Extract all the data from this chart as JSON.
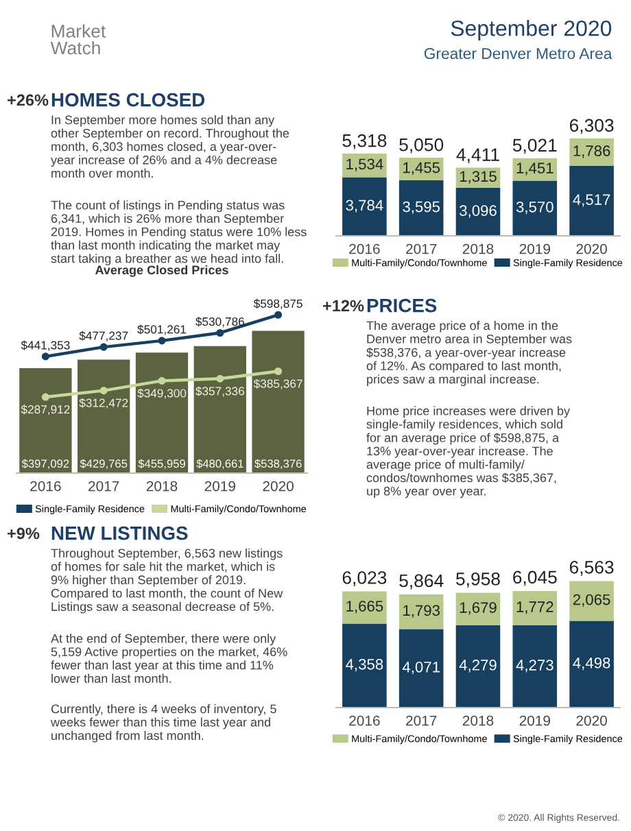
{
  "chart_data": [
    {
      "type": "other",
      "title": "September 2020",
      "subtitle": "Greater Denver Metro Area",
      "annotations": [
        "Market\nWatch"
      ]
    },
    {
      "type": "other",
      "title": "HOMES CLOSED",
      "subtitle": "+26%",
      "annotations": [
        "In September more homes sold than any\nother September on record. Throughout the\nmonth, 6,303 homes closed, a year-over-\nyear increase of 26% and a 4% decrease\nmonth over month.",
        "The count of listings in Pending status was\n6,341, which is 26% more than September\n2019. Homes in Pending status were 10% less\nthan last month indicating the market may\nstart taking a breather as we head into fall."
      ]
    },
    {
      "type": "bar",
      "stacked": true,
      "legend": "bottom",
      "categories": [
        "2016",
        "2017",
        "2018",
        "2019",
        "2020"
      ],
      "totals": [
        "5,318",
        "5,050",
        "4,411",
        "5,021",
        "6,303"
      ],
      "series": [
        {
          "name": "Single-Family Residence",
          "color": "#173f5f",
          "values": [
            3784,
            3595,
            3096,
            3570,
            4517
          ],
          "value_labels": [
            "3,784",
            "3,595",
            "3,096",
            "3,570",
            "4,517"
          ]
        },
        {
          "name": "Multi-Family/Condo/Townhome",
          "color": "#b9c98c",
          "values": [
            1534,
            1455,
            1315,
            1451,
            1786
          ],
          "value_labels": [
            "1,534",
            "1,455",
            "1,315",
            "1,451",
            "1,786"
          ]
        }
      ]
    },
    {
      "type": "bar",
      "title": "Average Closed Prices",
      "legend": "bottom",
      "marker": "circle",
      "categories": [
        "2016",
        "2017",
        "2018",
        "2019",
        "2020"
      ],
      "series": [
        {
          "type": "bar",
          "color": "#5c6340",
          "values": [
            397092,
            429765,
            455959,
            480661,
            538376
          ],
          "value_labels": [
            "$397,092",
            "$429,765",
            "$455,959",
            "$480,661",
            "$538,376"
          ]
        },
        {
          "type": "line",
          "name": "Single-Family Residence",
          "color": "#173f5f",
          "values": [
            441353,
            477237,
            501261,
            530786,
            598875
          ],
          "value_labels": [
            "$441,353",
            "$477,237",
            "$501,261",
            "$530,786",
            "$598,875"
          ]
        },
        {
          "type": "line",
          "name": "Multi-Family/Condo/Townhome",
          "color": "#c8d89a",
          "values": [
            287912,
            312472,
            349300,
            357336,
            385367
          ],
          "value_labels": [
            "$287,912",
            "$312,472",
            "$349,300",
            "$357,336",
            "$385,367"
          ]
        }
      ]
    },
    {
      "type": "other",
      "title": "PRICES",
      "subtitle": "+12%",
      "annotations": [
        "The average price of a home in the\nDenver metro area in September was\n$538,376, a year-over-year increase\nof 12%. As compared to last month,\nprices saw a marginal increase.",
        "Home price increases were driven by\nsingle-family residences, which sold\nfor an average price of $598,875, a\n13% year-over-year increase. The\naverage price of multi-family/\ncondos/townhomes was $385,367,\nup 8% year over year."
      ]
    },
    {
      "type": "other",
      "title": "NEW LISTINGS",
      "subtitle": "+9%",
      "annotations": [
        "Throughout September, 6,563 new listings\nof homes for sale hit the market, which is\n9% higher than September of 2019.\nCompared to last month, the count of New\nListings saw a seasonal decrease of 5%.",
        "At the end of September, there were only\n5,159 Active properties on the market, 46%\nfewer than last year at this time and 11%\nlower than last month.",
        "Currently, there is 4 weeks of inventory, 5\nweeks fewer than this time last year and\nunchanged from last month."
      ]
    },
    {
      "type": "bar",
      "stacked": true,
      "legend": "bottom",
      "categories": [
        "2016",
        "2017",
        "2018",
        "2019",
        "2020"
      ],
      "totals": [
        "6,023",
        "5,864",
        "5,958",
        "6,045",
        "6,563"
      ],
      "annotations": [
        "© 2020. All Rights Reserved."
      ],
      "series": [
        {
          "name": "Single-Family Residence",
          "color": "#173f5f",
          "values": [
            4358,
            4071,
            4279,
            4273,
            4498
          ],
          "value_labels": [
            "4,358",
            "4,071",
            "4,279",
            "4,273",
            "4,498"
          ]
        },
        {
          "name": "Multi-Family/Condo/Townhome",
          "color": "#b9c98c",
          "values": [
            1665,
            1793,
            1679,
            1772,
            2065
          ],
          "value_labels": [
            "1,665",
            "1,793",
            "1,679",
            "1,772",
            "2,065"
          ]
        }
      ]
    }
  ]
}
